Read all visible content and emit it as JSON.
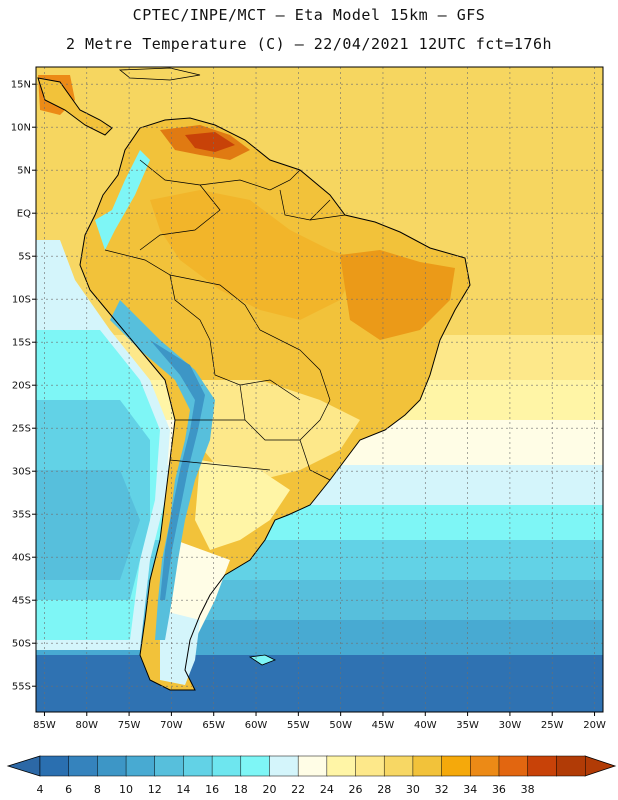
{
  "header": {
    "line1": "CPTEC/INPE/MCT –  Eta Model 15km – GFS",
    "line2": "2 Metre Temperature (C) – 22/04/2021 12UTC fct=176h"
  },
  "map": {
    "lon_range": [
      -86,
      -19
    ],
    "lat_range": [
      -58,
      17
    ],
    "lat_ticks": [
      "15N",
      "10N",
      "5N",
      "EQ",
      "5S",
      "10S",
      "15S",
      "20S",
      "25S",
      "30S",
      "35S",
      "40S",
      "45S",
      "50S",
      "55S"
    ],
    "lat_values": [
      15,
      10,
      5,
      0,
      -5,
      -10,
      -15,
      -20,
      -25,
      -30,
      -35,
      -40,
      -45,
      -50,
      -55
    ],
    "lon_ticks": [
      "85W",
      "80W",
      "75W",
      "70W",
      "65W",
      "60W",
      "55W",
      "50W",
      "45W",
      "40W",
      "35W",
      "30W",
      "25W",
      "20W"
    ],
    "lon_values": [
      -85,
      -80,
      -75,
      -70,
      -65,
      -60,
      -55,
      -50,
      -45,
      -40,
      -35,
      -30,
      -25,
      -20
    ]
  },
  "colorbar": {
    "labels": [
      "4",
      "6",
      "8",
      "10",
      "12",
      "14",
      "16",
      "18",
      "20",
      "22",
      "24",
      "26",
      "28",
      "30",
      "32",
      "34",
      "36",
      "38"
    ],
    "colors": [
      "#2a6fb0",
      "#3583bd",
      "#3d96c6",
      "#48aad2",
      "#57bfdc",
      "#62d2e6",
      "#6ee6ef",
      "#7ef6f6",
      "#d4f5fb",
      "#fffde6",
      "#fff5a6",
      "#fde88a",
      "#f7d764",
      "#f2c23a",
      "#f5a90b",
      "#ec8a16",
      "#e26610",
      "#c84208",
      "#b13b06"
    ],
    "under_color": "#2c68a6",
    "over_color": "#b13b06"
  }
}
